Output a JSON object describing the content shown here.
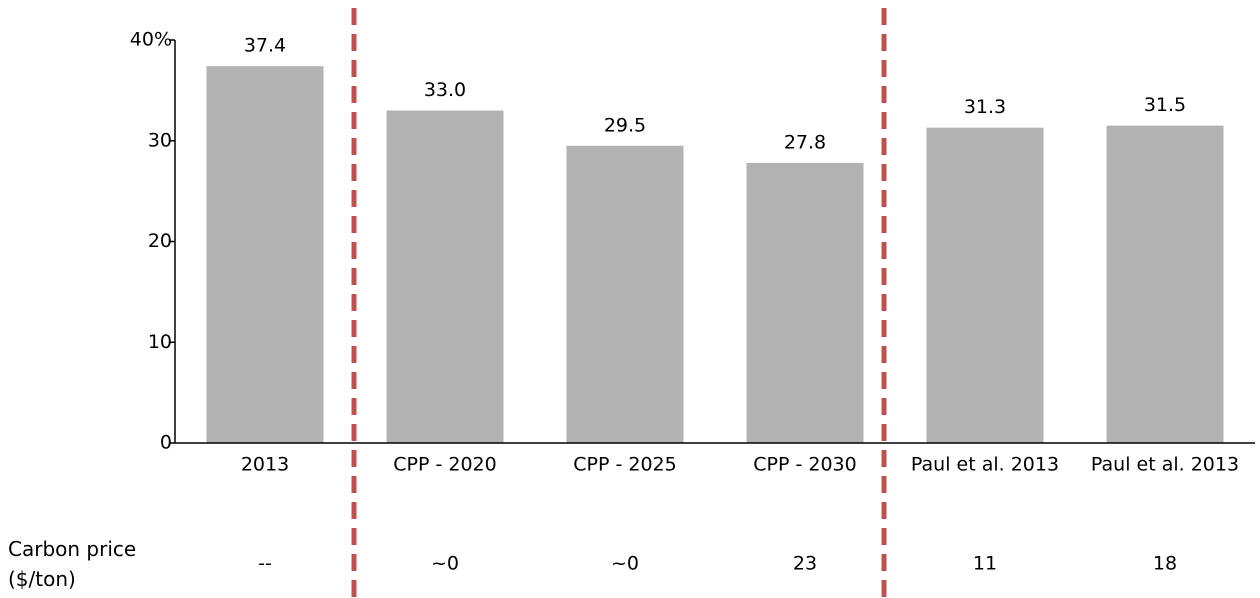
{
  "chart_data": {
    "type": "bar",
    "categories": [
      "2013",
      "CPP - 2020",
      "CPP - 2025",
      "CPP - 2030",
      "Paul et al. 2013",
      "Paul et al. 2013"
    ],
    "values": [
      37.4,
      33.0,
      29.5,
      27.8,
      31.3,
      31.5
    ],
    "value_labels": [
      "37.4",
      "33.0",
      "29.5",
      "27.8",
      "31.3",
      "31.5"
    ],
    "color": "#b2b2b2",
    "ylim": [
      0,
      40
    ],
    "yticks": [
      0,
      10,
      20,
      30,
      {
        "value": 40,
        "label": "40%"
      }
    ],
    "grid": false,
    "carbon_price": {
      "label": "Carbon price ($/ton)",
      "values": [
        "--",
        "~0",
        "~0",
        "23",
        "11",
        "18"
      ]
    }
  }
}
